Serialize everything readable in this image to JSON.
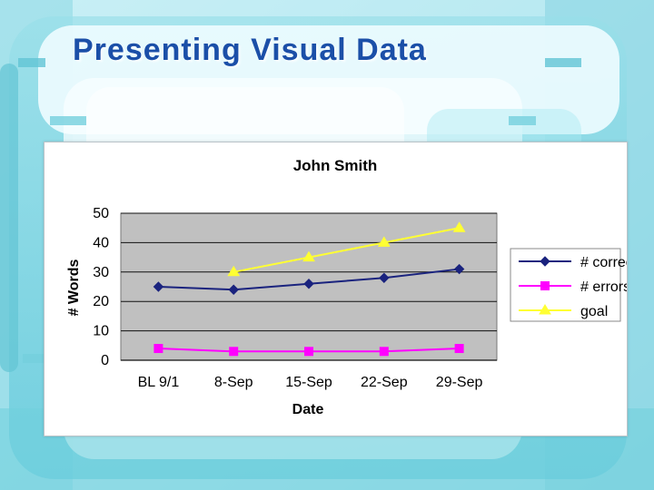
{
  "slide": {
    "title": "Presenting Visual Data"
  },
  "colors": {
    "title": "#1b4fa8",
    "background": "#c9eef4",
    "plot_area": "#c0c0c0",
    "correct": "#1a237e",
    "errors": "#ff00ff",
    "goal": "#ffff33"
  },
  "chart_data": {
    "type": "line",
    "title": "John Smith",
    "xlabel": "Date",
    "ylabel": "# Words",
    "categories": [
      "BL 9/1",
      "8-Sep",
      "15-Sep",
      "22-Sep",
      "29-Sep"
    ],
    "ylim": [
      0,
      50
    ],
    "yticks": [
      0,
      10,
      20,
      30,
      40,
      50
    ],
    "grid": "horizontal",
    "legend_position": "right",
    "series": [
      {
        "name": "# correct",
        "values": [
          25,
          24,
          26,
          28,
          31
        ],
        "color": "#1a237e",
        "marker": "diamond"
      },
      {
        "name": "# errors",
        "values": [
          4,
          3,
          3,
          3,
          4
        ],
        "color": "#ff00ff",
        "marker": "square"
      },
      {
        "name": "goal",
        "values": [
          null,
          30,
          35,
          40,
          45
        ],
        "color": "#ffff33",
        "marker": "triangle"
      }
    ]
  }
}
